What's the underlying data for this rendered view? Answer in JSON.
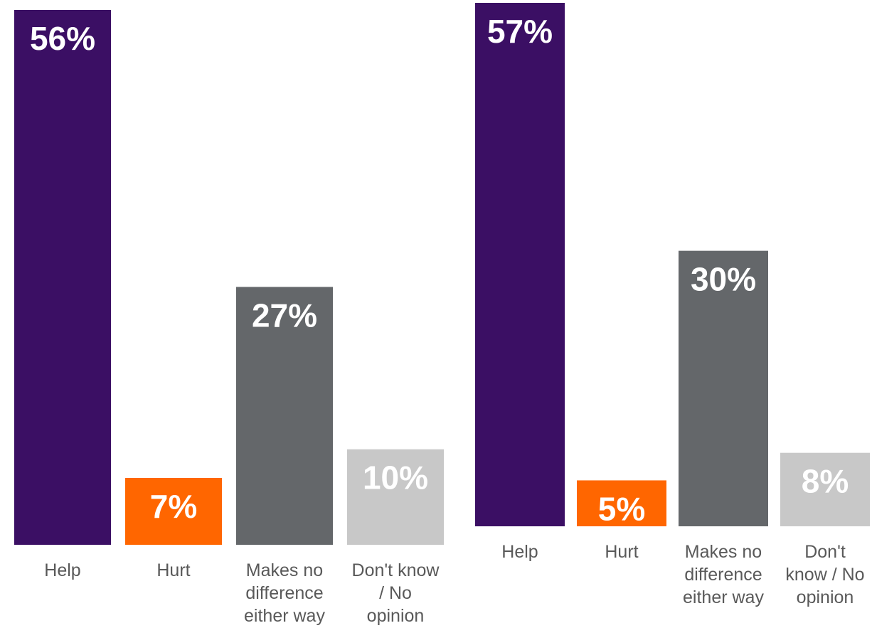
{
  "chart_data": [
    {
      "type": "bar",
      "categories": [
        "Help",
        "Hurt",
        "Makes no difference either way",
        "Don't know / No opinion"
      ],
      "category_lines": [
        [
          "Help"
        ],
        [
          "Hurt"
        ],
        [
          "Makes no",
          "difference",
          "either way"
        ],
        [
          "Don't know",
          "/ No",
          "opinion"
        ]
      ],
      "values": [
        56,
        7,
        27,
        10
      ],
      "value_labels": [
        "56%",
        "7%",
        "27%",
        "10%"
      ],
      "colors": [
        "#3b0f64",
        "#ff6600",
        "#64676a",
        "#c8c8c8"
      ],
      "ylim": [
        0,
        56
      ],
      "title": "",
      "xlabel": "",
      "ylabel": ""
    },
    {
      "type": "bar",
      "categories": [
        "Help",
        "Hurt",
        "Makes no difference either way",
        "Don't know / No opinion"
      ],
      "category_lines": [
        [
          "Help"
        ],
        [
          "Hurt"
        ],
        [
          "Makes no",
          "difference",
          "either way"
        ],
        [
          "Don't",
          "know / No",
          "opinion"
        ]
      ],
      "values": [
        57,
        5,
        30,
        8
      ],
      "value_labels": [
        "57%",
        "5%",
        "30%",
        "8%"
      ],
      "colors": [
        "#3b0f64",
        "#ff6600",
        "#64676a",
        "#c8c8c8"
      ],
      "ylim": [
        0,
        57
      ],
      "title": "",
      "xlabel": "",
      "ylabel": ""
    }
  ]
}
